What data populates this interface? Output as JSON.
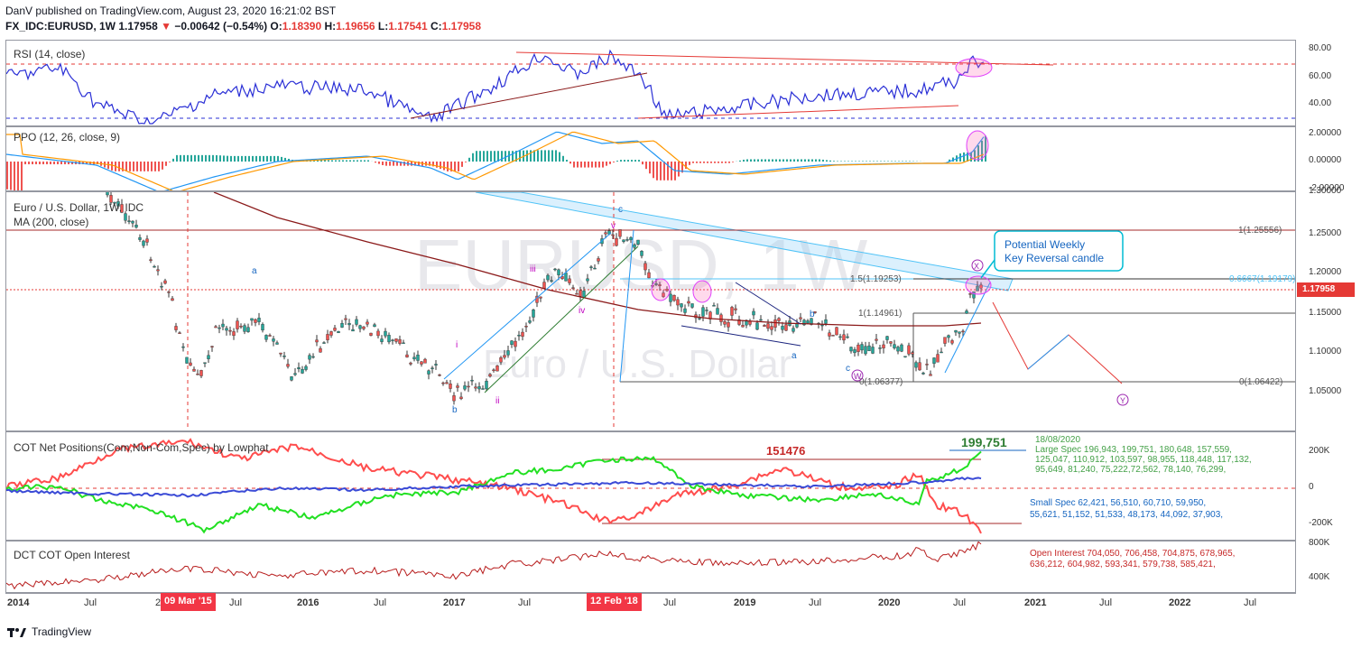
{
  "header": {
    "published": "DanV published on TradingView.com, August 23, 2020 16:21:02 BST",
    "symbol": "FX_IDC:EURUSD, 1W",
    "last": "1.17958",
    "arrow": "▼",
    "change": "−0.00642 (−0.54%)",
    "o_label": "O:",
    "o": "1.18390",
    "h_label": "H:",
    "h": "1.19656",
    "l_label": "L:",
    "l": "1.17541",
    "c_label": "C:",
    "c": "1.17958"
  },
  "panes": {
    "rsi_label": "RSI (14, close)",
    "ppo_label": "PPO (12, 26, close, 9)",
    "main_label": "Euro / U.S. Dollar, 1W, IDC",
    "ma_label": "MA (200, close)",
    "cot_label": "COT Net Positions(Com,Non-Com,Spec) by Lowphat",
    "oi_label": "DCT COT Open Interest"
  },
  "watermark": {
    "symbol": "EURUSD, 1W",
    "name": "Euro / U.S. Dollar"
  },
  "yaxis": {
    "rsi": [
      "80.00",
      "60.00",
      "40.00"
    ],
    "ppo": [
      "2.00000",
      "0.00000",
      "-2.00000"
    ],
    "main": [
      "1.30000",
      "1.25000",
      "1.20000",
      "1.15000",
      "1.10000",
      "1.05000"
    ],
    "cot": [
      "200K",
      "0",
      "-200K"
    ],
    "oi": [
      "800K",
      "400K"
    ],
    "price_tag": "1.17958"
  },
  "xaxis": {
    "ticks": [
      "2014",
      "Jul",
      "20",
      "Jul",
      "2016",
      "Jul",
      "2017",
      "Jul",
      "Jul",
      "2019",
      "Jul",
      "2020",
      "Jul",
      "2021",
      "Jul",
      "2022",
      "Jul"
    ],
    "bold": [
      "2014",
      "2016",
      "2017",
      "2019",
      "2020",
      "2021",
      "2022"
    ],
    "tag1": "09 Mar '15",
    "tag2": "12 Feb '18"
  },
  "annotations": {
    "callout": "Potential Weekly Key Reversal candle",
    "fib_top": "1(1.25556)",
    "fib_15": "1.5(1.19253)",
    "fib_0667": "0.6667(1.19179)",
    "fib_1": "1(1.14961)",
    "fib_0": "0(1.06422)",
    "fib_06377": "0(1.06377)",
    "cot_big": "199,751",
    "cot_level": "151476",
    "cot_date": "18/08/2020",
    "large_spec": "Large Spec 196,943, 199,751, 180,648, 157,559, 125,047, 110,912, 103,597, 98,955, 118,448, 117,132, 95,649, 81,240, 75,222,72,562, 78,140, 76,299,",
    "small_spec": "Small Spec 62,421, 56,510, 60,710, 59,950, 55,621, 51,152, 51,533, 48,173, 44,092, 37,903,",
    "open_interest": "Open Interest 704,050, 706,458, 704,875, 678,965, 636,212, 604,982, 593,341, 579,738, 585,421,",
    "waves": [
      "a",
      "b",
      "c",
      "i",
      "ii",
      "iii",
      "iv",
      "v",
      "X",
      "Y",
      "W"
    ]
  },
  "footer": {
    "brand": "TradingView"
  },
  "colors": {
    "up": "#26a69a",
    "down": "#ef5350",
    "ma": "#8b1a1a",
    "rsi": "#2a2fd6",
    "green": "#00c800",
    "red": "#ff3b3b",
    "blue": "#3a4ad6"
  },
  "chart_data": {
    "type": "candlestick",
    "title": "Euro / U.S. Dollar, 1W, IDC",
    "series_close_approx": [
      {
        "x": "2014-07",
        "y": 1.36
      },
      {
        "x": "2014-12",
        "y": 1.22
      },
      {
        "x": "2015-03",
        "y": 1.06
      },
      {
        "x": "2015-08",
        "y": 1.12
      },
      {
        "x": "2016-01",
        "y": 1.09
      },
      {
        "x": "2016-05",
        "y": 1.14
      },
      {
        "x": "2016-12",
        "y": 1.04
      },
      {
        "x": "2017-06",
        "y": 1.14
      },
      {
        "x": "2017-09",
        "y": 1.2
      },
      {
        "x": "2018-02",
        "y": 1.25
      },
      {
        "x": "2018-06",
        "y": 1.16
      },
      {
        "x": "2018-11",
        "y": 1.13
      },
      {
        "x": "2019-06",
        "y": 1.13
      },
      {
        "x": "2019-10",
        "y": 1.1
      },
      {
        "x": "2020-03",
        "y": 1.07
      },
      {
        "x": "2020-08",
        "y": 1.18
      }
    ],
    "ylim": [
      1.03,
      1.3
    ],
    "ma_label": "MA (200, close)"
  }
}
